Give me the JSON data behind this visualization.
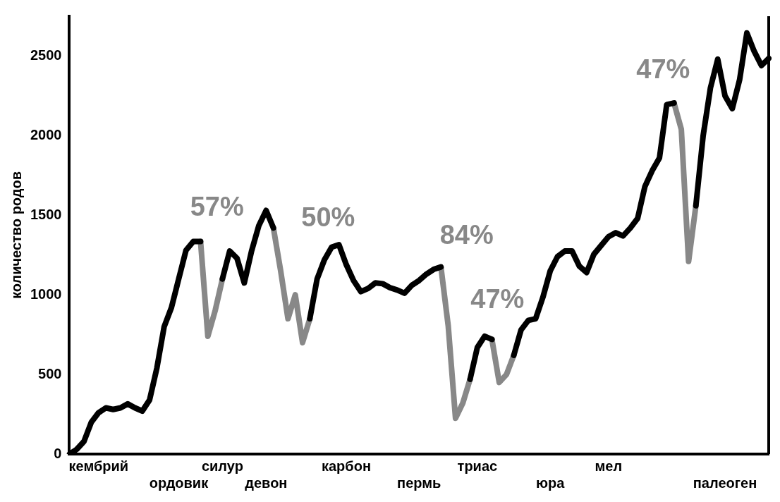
{
  "chart_data": {
    "type": "line",
    "ylabel": "количество родов",
    "categories": [
      null,
      null,
      null,
      null,
      "кембрий",
      null,
      null,
      null,
      null,
      null,
      null,
      null,
      null,
      null,
      null,
      "ордовик",
      null,
      null,
      null,
      null,
      null,
      "силур",
      null,
      null,
      null,
      null,
      null,
      "девон",
      null,
      null,
      null,
      null,
      null,
      null,
      null,
      null,
      null,
      null,
      "карбон",
      null,
      null,
      null,
      null,
      null,
      null,
      null,
      null,
      null,
      "пермь",
      null,
      null,
      null,
      null,
      null,
      null,
      null,
      "триас",
      null,
      null,
      null,
      null,
      null,
      null,
      null,
      null,
      null,
      "юра",
      null,
      null,
      null,
      null,
      null,
      null,
      null,
      "мел",
      null,
      null,
      null,
      null,
      null,
      null,
      null,
      null,
      null,
      null,
      null,
      null,
      null,
      null,
      null,
      "палеоген",
      null,
      null,
      null,
      null,
      null,
      null
    ],
    "series": [
      {
        "color": "#000000",
        "values": [
          0,
          30,
          80,
          200,
          260,
          290,
          280,
          290,
          315,
          290,
          270,
          340,
          540,
          800,
          920,
          1100,
          1280,
          1335,
          1335,
          null,
          null,
          1100,
          1275,
          1230,
          1075,
          1275,
          1435,
          1530,
          1420,
          null,
          null,
          null,
          null,
          850,
          1100,
          1220,
          1300,
          1315,
          1190,
          1090,
          1020,
          1040,
          1075,
          1070,
          1045,
          1030,
          1010,
          1060,
          1090,
          1130,
          1160,
          1175,
          null,
          null,
          null,
          470,
          670,
          740,
          720,
          null,
          null,
          620,
          780,
          840,
          850,
          985,
          1150,
          1240,
          1275,
          1275,
          1180,
          1140,
          1255,
          1310,
          1365,
          1390,
          1370,
          1420,
          1480,
          1680,
          1780,
          1860,
          2195,
          2205,
          null,
          null,
          1560,
          2000,
          2300,
          2480,
          2250,
          2170,
          2350,
          2645,
          2530,
          2440,
          2485
        ]
      },
      {
        "color": "#888888",
        "values": [
          null,
          null,
          null,
          null,
          null,
          null,
          null,
          null,
          null,
          null,
          null,
          null,
          null,
          null,
          null,
          null,
          null,
          null,
          1335,
          740,
          900,
          1100,
          null,
          null,
          null,
          null,
          null,
          null,
          1420,
          1150,
          850,
          1000,
          700,
          850,
          null,
          null,
          null,
          null,
          null,
          null,
          null,
          null,
          null,
          null,
          null,
          null,
          null,
          null,
          null,
          null,
          null,
          1175,
          805,
          225,
          320,
          470,
          null,
          null,
          720,
          450,
          500,
          620,
          null,
          null,
          null,
          null,
          null,
          null,
          null,
          null,
          null,
          null,
          null,
          null,
          null,
          null,
          null,
          null,
          null,
          null,
          null,
          null,
          null,
          2205,
          2040,
          1210,
          1560,
          null,
          null,
          null,
          null,
          null,
          null,
          null,
          null,
          null,
          null
        ]
      }
    ],
    "annotations": [
      "57%",
      "50%",
      "84%",
      "47%",
      "47%"
    ],
    "ylim": [
      0,
      2750
    ],
    "yticks": [
      0,
      500,
      1000,
      1500,
      2000,
      2500
    ],
    "grid": false,
    "legend": false,
    "marker": "none",
    "line_style": "solid"
  }
}
